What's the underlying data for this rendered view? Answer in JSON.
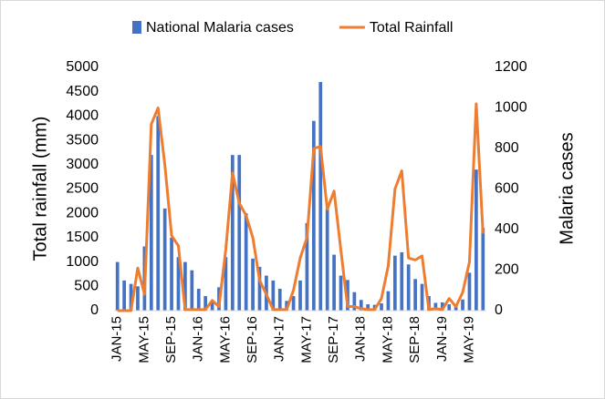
{
  "chart_data": {
    "type": "bar_line",
    "categories": [
      "JAN-15",
      null,
      null,
      null,
      "MAY-15",
      null,
      null,
      null,
      "SEP-15",
      null,
      null,
      null,
      "JAN-16",
      null,
      null,
      null,
      "MAY-16",
      null,
      null,
      null,
      "SEP-16",
      null,
      null,
      null,
      "JAN-17",
      null,
      null,
      null,
      "MAY-17",
      null,
      null,
      null,
      "SEP-17",
      null,
      null,
      null,
      "JAN-18",
      null,
      null,
      null,
      "MAY-18",
      null,
      null,
      null,
      "SEP-18",
      null,
      null,
      null,
      "JAN-19",
      null,
      null,
      null,
      "MAY-19",
      null,
      null
    ],
    "series": [
      {
        "name": "National Malaria cases",
        "color": "#4472c4",
        "type": "bar",
        "values": [
          1000,
          620,
          550,
          500,
          1320,
          3200,
          4000,
          2100,
          1500,
          1100,
          1000,
          830,
          450,
          300,
          200,
          480,
          1100,
          3200,
          3200,
          2000,
          1070,
          900,
          720,
          620,
          450,
          200,
          300,
          620,
          1800,
          3900,
          4700,
          2100,
          1150,
          720,
          630,
          380,
          220,
          130,
          120,
          150,
          400,
          1130,
          1200,
          950,
          650,
          550,
          300,
          160,
          170,
          130,
          100,
          230,
          780,
          2900,
          1700
        ]
      },
      {
        "name": "Total Rainfall",
        "color": "#ed7d31",
        "type": "line",
        "axis": "y2",
        "values": [
          0,
          0,
          0,
          210,
          80,
          920,
          1000,
          720,
          370,
          320,
          5,
          5,
          5,
          5,
          50,
          20,
          300,
          680,
          530,
          470,
          360,
          150,
          80,
          5,
          5,
          5,
          100,
          260,
          360,
          800,
          810,
          500,
          590,
          300,
          20,
          20,
          10,
          5,
          5,
          60,
          220,
          600,
          690,
          260,
          250,
          270,
          5,
          10,
          5,
          60,
          20,
          90,
          240,
          1020,
          380
        ]
      }
    ],
    "y_label": "Total rainfall (mm)",
    "y2_label": "Malaria cases",
    "ylim": [
      0,
      5000
    ],
    "yticks": [
      0,
      500,
      1000,
      1500,
      2000,
      2500,
      3000,
      3500,
      4000,
      4500,
      5000
    ],
    "y2lim": [
      0,
      1200
    ],
    "y2ticks": [
      0,
      200,
      400,
      600,
      800,
      1000,
      1200
    ],
    "grid": false,
    "legend": "top"
  }
}
